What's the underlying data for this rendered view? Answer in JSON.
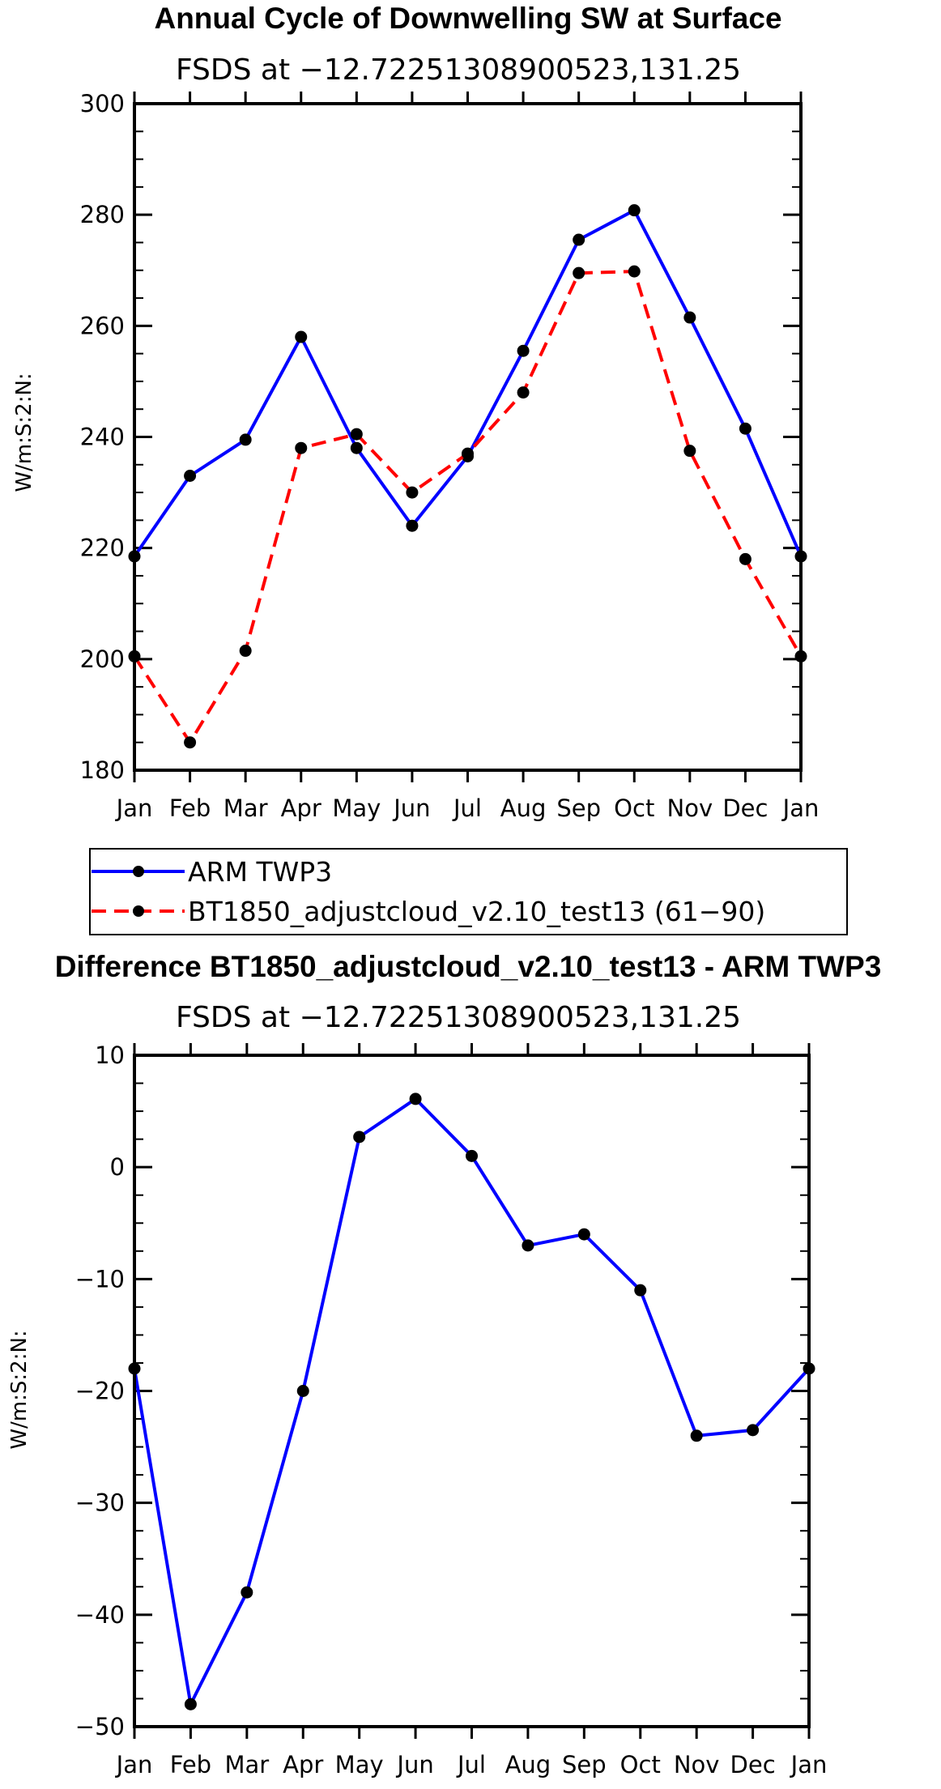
{
  "colors": {
    "obs": "#0000ff",
    "model": "#ff0000",
    "marker": "#000000",
    "diff": "#0000ff"
  },
  "chart_data": [
    {
      "type": "line",
      "title": "Annual Cycle of Downwelling SW at Surface",
      "subtitle": "FSDS at −12.72251308900523,131.25",
      "xlabel": "",
      "ylabel": "W/m:S:2:N:",
      "categories": [
        "Jan",
        "Feb",
        "Mar",
        "Apr",
        "May",
        "Jun",
        "Jul",
        "Aug",
        "Sep",
        "Oct",
        "Nov",
        "Dec",
        "Jan"
      ],
      "ylim": [
        180,
        300
      ],
      "yticks": [
        180,
        200,
        220,
        240,
        260,
        280,
        300
      ],
      "ytick_labels": [
        "180",
        "200",
        "220",
        "240",
        "260",
        "280",
        "300"
      ],
      "series": [
        {
          "name": "ARM TWP3",
          "style": "solid",
          "color": "#0000ff",
          "values": [
            218.5,
            233.0,
            239.5,
            258.0,
            238.0,
            224.0,
            236.5,
            255.5,
            275.5,
            280.8,
            261.5,
            241.5,
            218.5
          ]
        },
        {
          "name": "BT1850_adjustcloud_v2.10_test13 (61−90)",
          "style": "dashed",
          "color": "#ff0000",
          "values": [
            200.5,
            185.0,
            201.5,
            238.0,
            240.5,
            230.0,
            237.0,
            248.0,
            269.5,
            269.8,
            237.5,
            218.0,
            200.5
          ]
        }
      ],
      "legend": [
        "ARM TWP3",
        "BT1850_adjustcloud_v2.10_test13 (61−90)"
      ]
    },
    {
      "type": "line",
      "title": "Difference BT1850_adjustcloud_v2.10_test13 - ARM TWP3",
      "subtitle": "FSDS at −12.72251308900523,131.25",
      "xlabel": "",
      "ylabel": "W/m:S:2:N:",
      "categories": [
        "Jan",
        "Feb",
        "Mar",
        "Apr",
        "May",
        "Jun",
        "Jul",
        "Aug",
        "Sep",
        "Oct",
        "Nov",
        "Dec",
        "Jan"
      ],
      "ylim": [
        -50,
        10
      ],
      "yticks": [
        -50,
        -40,
        -30,
        -20,
        -10,
        0,
        10
      ],
      "ytick_labels": [
        "−50",
        "−40",
        "−30",
        "−20",
        "−10",
        "0",
        "10"
      ],
      "series": [
        {
          "name": "Difference",
          "style": "solid",
          "color": "#0000ff",
          "values": [
            -18.0,
            -48.0,
            -38.0,
            -20.0,
            2.7,
            6.1,
            1.0,
            -7.0,
            -6.0,
            -11.0,
            -24.0,
            -23.5,
            -18.0
          ]
        }
      ]
    }
  ]
}
